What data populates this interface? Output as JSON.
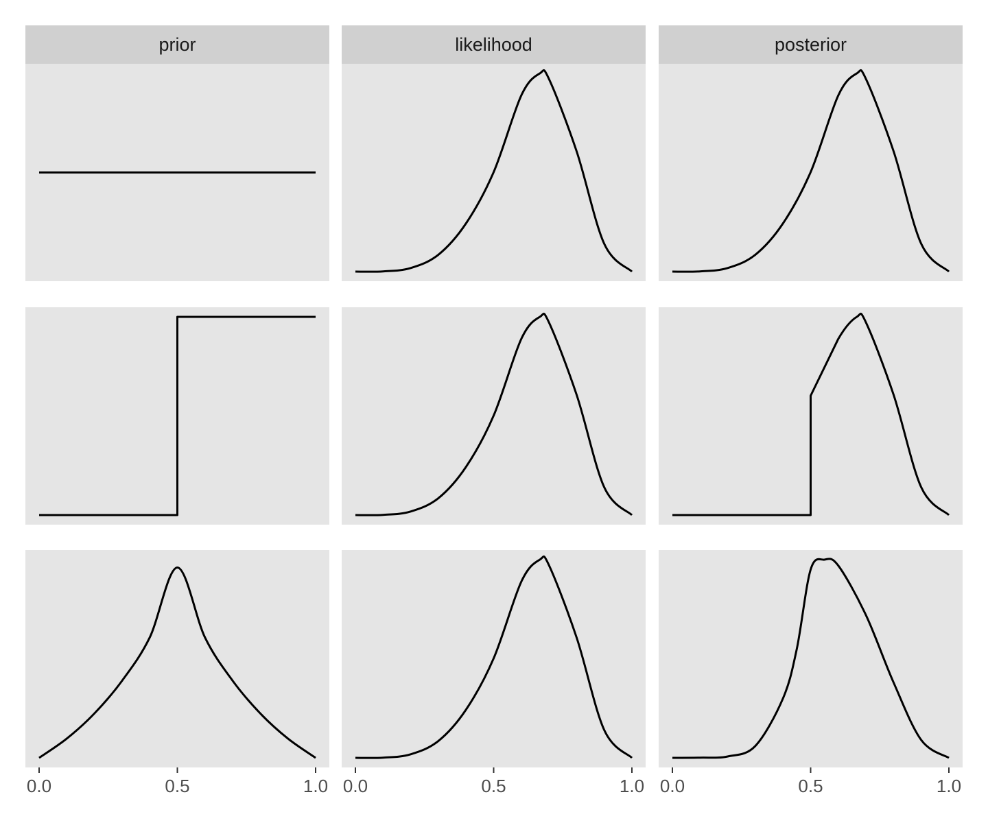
{
  "chart_data": {
    "type": "line",
    "layout": "facet-grid",
    "facet_columns": [
      "prior",
      "likelihood",
      "posterior"
    ],
    "facet_rows": 3,
    "x_ticks": [
      0.0,
      0.5,
      1.0
    ],
    "x_tick_labels": [
      "0.0",
      "0.5",
      "1.0"
    ],
    "xlim": [
      0,
      1
    ],
    "y_axis_shown": false,
    "grid": false,
    "panel_background": "#e5e5e5",
    "strip_background": "#d0d0d0",
    "line_color": "#000000",
    "panels": [
      {
        "row": 1,
        "column": "prior",
        "x": [
          0,
          1
        ],
        "y": [
          0.5,
          0.5
        ],
        "ylim": [
          0,
          1
        ]
      },
      {
        "row": 1,
        "column": "likelihood",
        "x": [
          0,
          0.1,
          0.2,
          0.3,
          0.4,
          0.5,
          0.6,
          0.667,
          0.7,
          0.8,
          0.9,
          1.0
        ],
        "y": [
          0,
          0.001,
          0.018,
          0.085,
          0.243,
          0.502,
          0.889,
          1.0,
          0.972,
          0.607,
          0.14,
          0
        ]
      },
      {
        "row": 1,
        "column": "posterior",
        "x": [
          0,
          0.1,
          0.2,
          0.3,
          0.4,
          0.5,
          0.6,
          0.667,
          0.7,
          0.8,
          0.9,
          1.0
        ],
        "y": [
          0,
          0.001,
          0.018,
          0.085,
          0.243,
          0.502,
          0.889,
          1.0,
          0.972,
          0.607,
          0.14,
          0
        ]
      },
      {
        "row": 2,
        "column": "prior",
        "x": [
          0,
          0.5,
          0.5,
          1.0
        ],
        "y": [
          0,
          0,
          1,
          1
        ]
      },
      {
        "row": 2,
        "column": "likelihood",
        "x": [
          0,
          0.1,
          0.2,
          0.3,
          0.4,
          0.5,
          0.6,
          0.667,
          0.7,
          0.8,
          0.9,
          1.0
        ],
        "y": [
          0,
          0.001,
          0.018,
          0.085,
          0.243,
          0.502,
          0.889,
          1.0,
          0.972,
          0.607,
          0.14,
          0
        ]
      },
      {
        "row": 2,
        "column": "posterior",
        "x": [
          0,
          0.5,
          0.5,
          0.6,
          0.667,
          0.7,
          0.8,
          0.9,
          1.0
        ],
        "y": [
          0,
          0,
          0.602,
          0.889,
          1.0,
          0.972,
          0.607,
          0.14,
          0
        ]
      },
      {
        "row": 3,
        "column": "prior",
        "x": [
          0,
          0.1,
          0.2,
          0.3,
          0.4,
          0.5,
          0.6,
          0.7,
          0.8,
          0.9,
          1.0
        ],
        "y": [
          0,
          0.097,
          0.224,
          0.389,
          0.607,
          0.96,
          0.607,
          0.389,
          0.224,
          0.097,
          0
        ]
      },
      {
        "row": 3,
        "column": "likelihood",
        "x": [
          0,
          0.1,
          0.2,
          0.3,
          0.4,
          0.5,
          0.6,
          0.667,
          0.7,
          0.8,
          0.9,
          1.0
        ],
        "y": [
          0,
          0.001,
          0.018,
          0.085,
          0.243,
          0.502,
          0.889,
          1.0,
          0.972,
          0.607,
          0.14,
          0
        ]
      },
      {
        "row": 3,
        "column": "posterior",
        "x": [
          0,
          0.1,
          0.2,
          0.3,
          0.4,
          0.45,
          0.5,
          0.55,
          0.6,
          0.7,
          0.8,
          0.9,
          1.0
        ],
        "y": [
          0,
          0.001,
          0.007,
          0.06,
          0.3,
          0.55,
          0.95,
          1.0,
          0.97,
          0.72,
          0.38,
          0.09,
          0
        ]
      }
    ]
  }
}
